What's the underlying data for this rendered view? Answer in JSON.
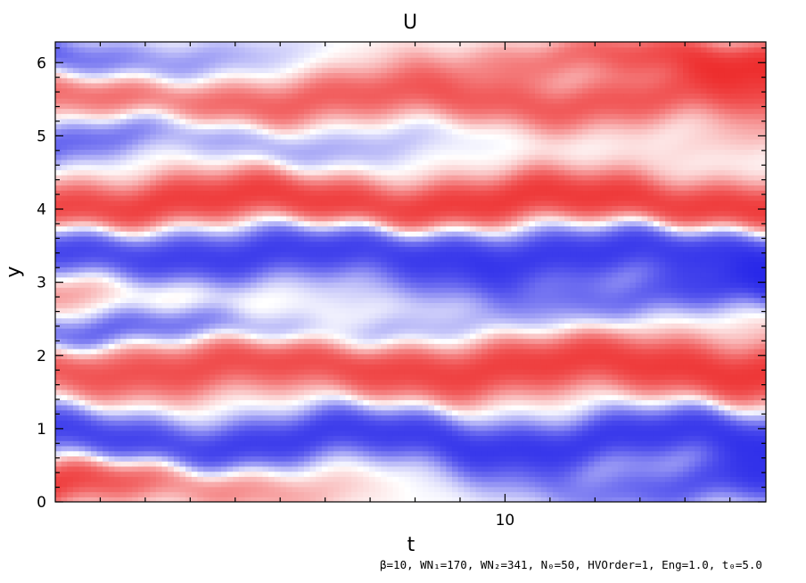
{
  "chart_data": {
    "type": "heatmap",
    "title": "U",
    "xlabel": "t",
    "ylabel": "y",
    "xlim": [
      0,
      15.8
    ],
    "ylim": [
      0,
      6.2832
    ],
    "x_ticks": [
      {
        "value": 10,
        "label": "10"
      }
    ],
    "y_ticks": [
      {
        "value": 0,
        "label": "0"
      },
      {
        "value": 1,
        "label": "1"
      },
      {
        "value": 2,
        "label": "2"
      },
      {
        "value": 3,
        "label": "3"
      },
      {
        "value": 4,
        "label": "4"
      },
      {
        "value": 5,
        "label": "5"
      },
      {
        "value": 6,
        "label": "6"
      }
    ],
    "colormap": {
      "negative": "#1f1fe8",
      "zero": "#ffffff",
      "positive": "#ec1e1e"
    },
    "bands": [
      {
        "y_center": 0.25,
        "half_width": 0.32,
        "start": 0.9,
        "end": -0.9,
        "wobble": 0.12
      },
      {
        "y_center": 0.85,
        "half_width": 0.35,
        "start": -0.9,
        "end": -1.0,
        "wobble": 0.15
      },
      {
        "y_center": 1.85,
        "half_width": 0.4,
        "start": 0.7,
        "end": 1.0,
        "wobble": 0.12
      },
      {
        "y_center": 2.35,
        "half_width": 0.25,
        "start": -0.7,
        "end": 0.1,
        "wobble": 0.1
      },
      {
        "y_center": 2.85,
        "half_width": 0.3,
        "start": 0.4,
        "end": -0.8,
        "wobble": 0.12
      },
      {
        "y_center": 3.4,
        "half_width": 0.38,
        "start": -0.9,
        "end": -1.0,
        "wobble": 0.1
      },
      {
        "y_center": 4.1,
        "half_width": 0.35,
        "start": 0.9,
        "end": 1.0,
        "wobble": 0.12
      },
      {
        "y_center": 4.95,
        "half_width": 0.3,
        "start": -0.6,
        "end": 0.2,
        "wobble": 0.18
      },
      {
        "y_center": 5.5,
        "half_width": 0.35,
        "start": 0.6,
        "end": 0.7,
        "wobble": 0.12
      },
      {
        "y_center": 6.05,
        "half_width": 0.3,
        "start": -0.7,
        "end": 1.0,
        "wobble": 0.1
      }
    ],
    "footnote": "β=10, WN₁=170, WN₂=341, N₀=50, HVOrder=1, Eng=1.0, t₀=5.0"
  }
}
